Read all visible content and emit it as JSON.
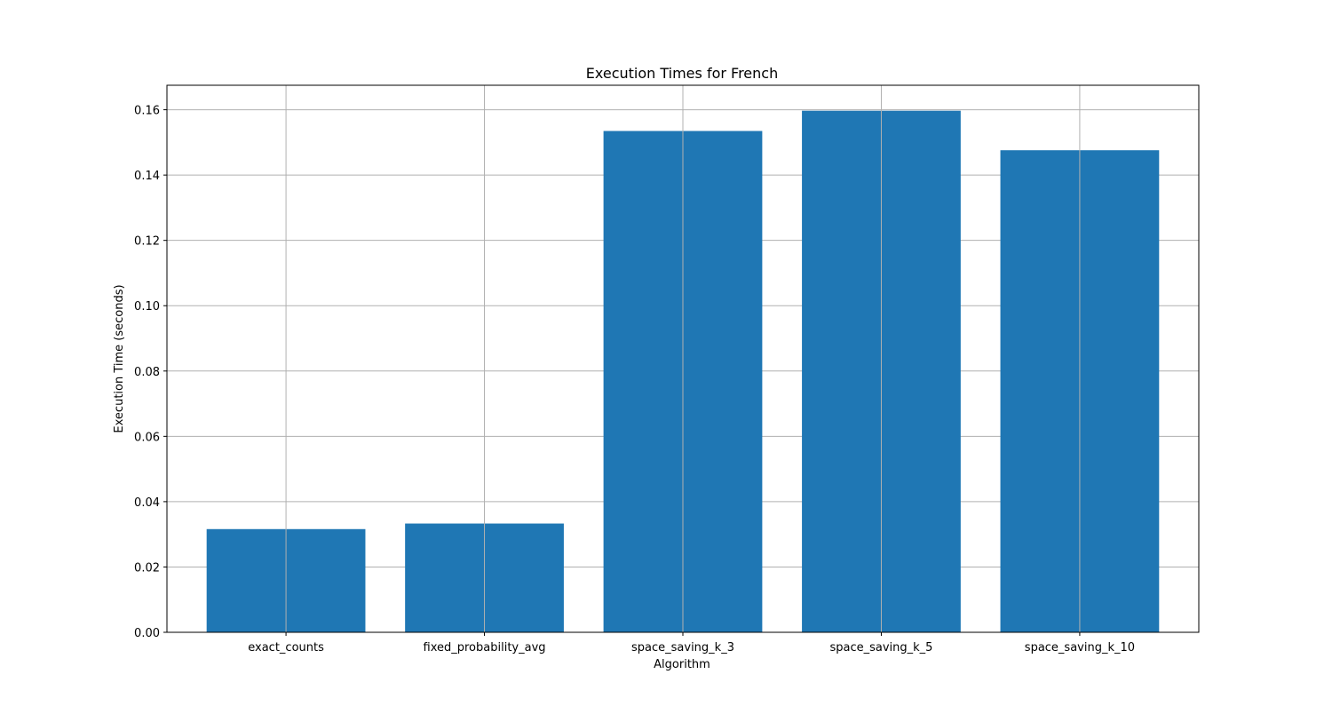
{
  "chart_data": {
    "type": "bar",
    "title": "Execution Times for French",
    "xlabel": "Algorithm",
    "ylabel": "Execution Time (seconds)",
    "categories": [
      "exact_counts",
      "fixed_probability_avg",
      "space_saving_k_3",
      "space_saving_k_5",
      "space_saving_k_10"
    ],
    "values": [
      0.0316,
      0.0333,
      0.1535,
      0.1597,
      0.1476
    ],
    "ylim": [
      0,
      0.1675
    ],
    "yticks": [
      0.0,
      0.02,
      0.04,
      0.06,
      0.08,
      0.1,
      0.12,
      0.14,
      0.16
    ],
    "ytick_labels": [
      "0.00",
      "0.02",
      "0.04",
      "0.06",
      "0.08",
      "0.10",
      "0.12",
      "0.14",
      "0.16"
    ],
    "grid": true,
    "bar_color": "#1f77b4",
    "grid_color": "#b0b0b0"
  }
}
